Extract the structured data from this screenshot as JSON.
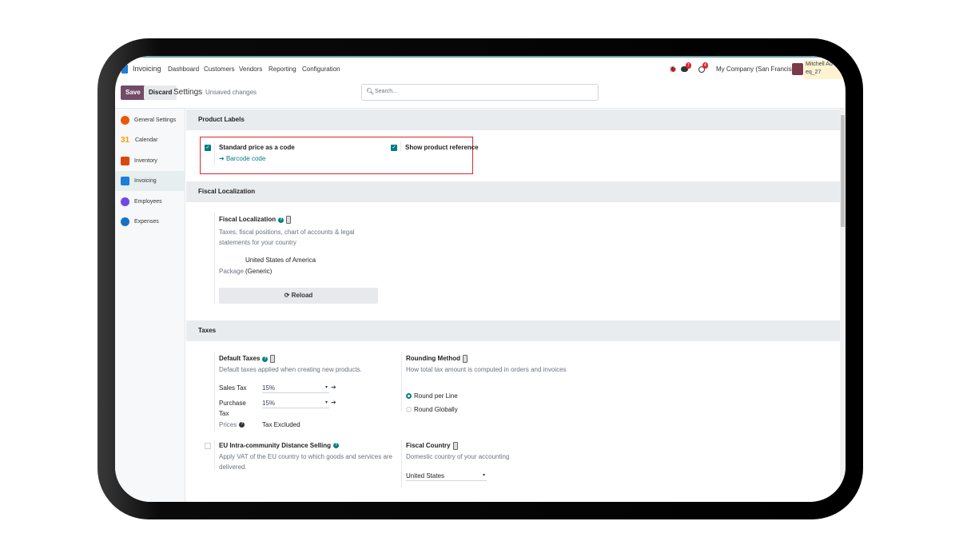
{
  "nav": {
    "app": "Invoicing",
    "menu": [
      "Dashboard",
      "Customers",
      "Vendors",
      "Reporting",
      "Configuration"
    ],
    "messages_count": "7",
    "activities_count": "4",
    "company": "My Company (San Francisco)",
    "user": "Mitchell Ad",
    "db": "eq_27"
  },
  "toolbar": {
    "save": "Save",
    "discard": "Discard",
    "title": "Settings",
    "status": "Unsaved changes",
    "search_placeholder": "Search..."
  },
  "sidebar": {
    "items": [
      {
        "label": "General Settings",
        "color": "#e8590c"
      },
      {
        "label": "Calendar",
        "color": "#f59f00"
      },
      {
        "label": "Inventory",
        "color": "#d9480f"
      },
      {
        "label": "Invoicing",
        "color": "#1c7ed6"
      },
      {
        "label": "Employees",
        "color": "#7048e8"
      },
      {
        "label": "Expenses",
        "color": "#1971c2"
      }
    ],
    "active": "Invoicing"
  },
  "product_labels": {
    "title": "Product Labels",
    "standard_price": {
      "label": "Standard price as a code",
      "checked": true,
      "link": "Barcode code"
    },
    "show_ref": {
      "label": "Show product reference",
      "checked": true
    }
  },
  "fiscal": {
    "title": "Fiscal Localization",
    "setting": "Fiscal Localization",
    "desc": "Taxes, fiscal positions, chart of accounts & legal statements for your country",
    "package_label": "Package",
    "package_value_1": "United States of America",
    "package_value_2": "(Generic)",
    "reload": "Reload"
  },
  "taxes": {
    "title": "Taxes",
    "default_taxes": "Default Taxes",
    "default_desc": "Default taxes applied when creating new products.",
    "sales_tax_label": "Sales Tax",
    "sales_tax": "15%",
    "purchase_tax_label_1": "Purchase",
    "purchase_tax_label_2": "Tax",
    "purchase_tax": "15%",
    "prices_label": "Prices",
    "prices_value": "Tax Excluded",
    "rounding": "Rounding Method",
    "rounding_desc": "How total tax amount is computed in orders and invoices",
    "round_line": "Round per Line",
    "round_global": "Round Globally",
    "eu": "EU Intra-community Distance Selling",
    "eu_desc_1": "Apply VAT of the EU country to which goods and services are",
    "eu_desc_2": "delivered.",
    "fiscal_country": "Fiscal Country",
    "fiscal_country_desc": "Domestic country of your accounting",
    "country": "United States"
  },
  "colors": {
    "primary": "#714b67",
    "accent": "#017e84",
    "highlight": "#e0262e"
  }
}
